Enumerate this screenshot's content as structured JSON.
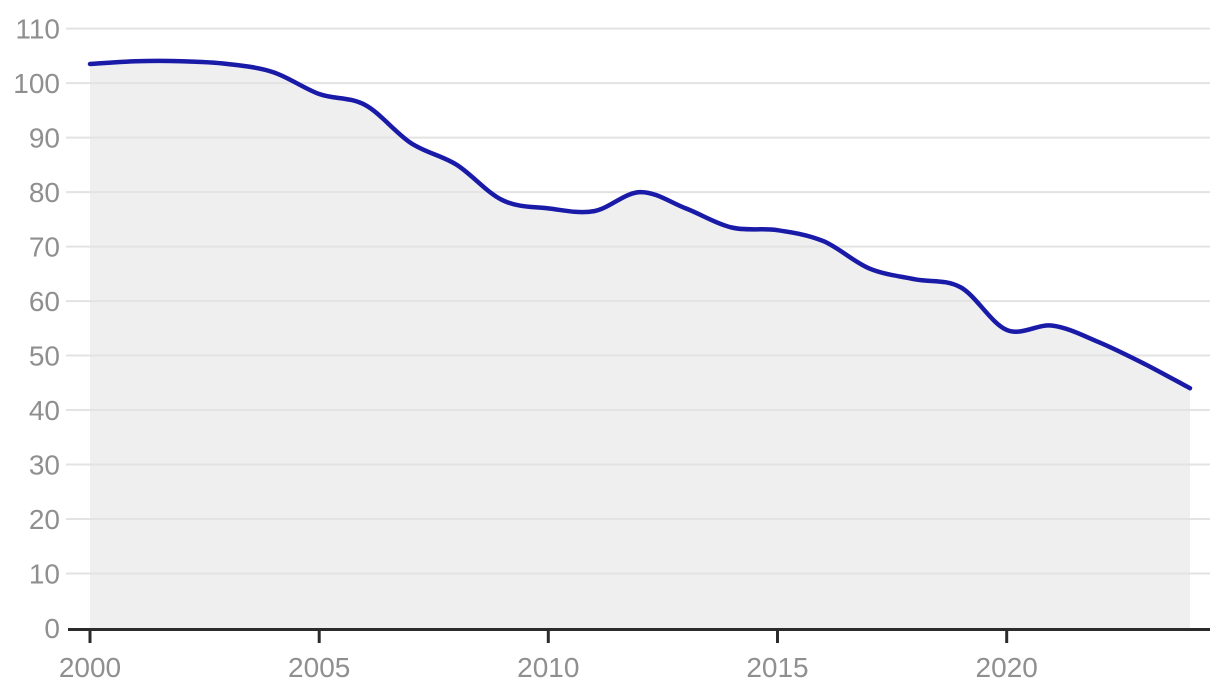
{
  "chart_data": {
    "type": "area",
    "title": "",
    "xlabel": "",
    "ylabel": "",
    "x": [
      2000,
      2001,
      2002,
      2003,
      2004,
      2005,
      2006,
      2007,
      2008,
      2009,
      2010,
      2011,
      2012,
      2013,
      2014,
      2015,
      2016,
      2017,
      2018,
      2019,
      2020,
      2021,
      2022,
      2023,
      2024
    ],
    "values": [
      103.5,
      104,
      104,
      103.5,
      102,
      98,
      96,
      89,
      85,
      78.5,
      77,
      76.5,
      80,
      77,
      73.5,
      73,
      71,
      66,
      64,
      62.5,
      54.7,
      55.5,
      52.5,
      48.5,
      44
    ],
    "xlim": [
      2000,
      2024
    ],
    "ylim": [
      0,
      110
    ],
    "x_tick_years": [
      2000,
      2005,
      2010,
      2015,
      2020
    ],
    "x_tick_labels": [
      "2000",
      "2005",
      "2010",
      "2015",
      "2020"
    ],
    "y_tick_values": [
      0,
      10,
      20,
      30,
      40,
      50,
      60,
      70,
      80,
      90,
      100,
      110
    ],
    "y_tick_labels": [
      "0",
      "10",
      "20",
      "30",
      "40",
      "50",
      "60",
      "70",
      "80",
      "90",
      "100",
      "110"
    ],
    "grid": true,
    "legend": "none",
    "smoothing": "spline",
    "colors": {
      "line": "#1a1aa8",
      "area_fill": "#efefef",
      "gridline": "#e3e3e3",
      "axis": "#2b2b2b",
      "tick_label": "#8f8f8f",
      "background": "#ffffff"
    }
  }
}
